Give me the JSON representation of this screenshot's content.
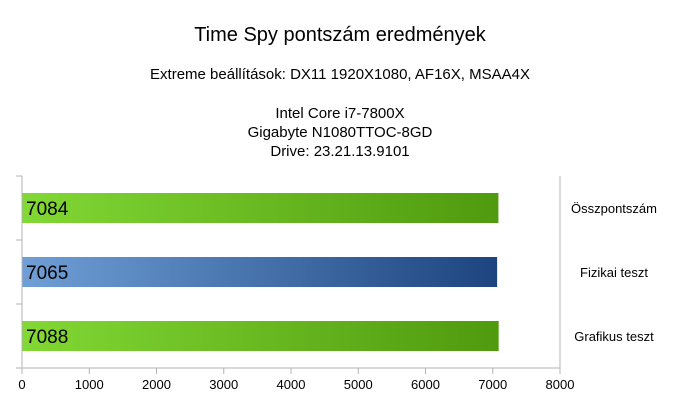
{
  "title": "Time Spy pontszám eredmények",
  "subtitle": "Extreme beállítások: DX11 1920X1080, AF16X, MSAA4X",
  "system": {
    "cpu": "Intel Core i7-7800X",
    "gpu": "Gigabyte N1080TTOC-8GD",
    "driver": "Drive: 23.21.13.9101"
  },
  "chart_data": {
    "type": "bar",
    "orientation": "horizontal",
    "categories": [
      "Összpontszám",
      "Fizikai teszt",
      "Grafikus teszt"
    ],
    "values": [
      7084,
      7065,
      7088
    ],
    "data_labels": [
      "7084",
      "7065",
      "7088"
    ],
    "bar_colors": [
      "#7ac943",
      "#4a78b4",
      "#7ac943"
    ],
    "xlim": [
      0,
      8000
    ],
    "xticks": [
      0,
      1000,
      2000,
      3000,
      4000,
      5000,
      6000,
      7000,
      8000
    ],
    "xtick_labels": [
      "0",
      "1000",
      "2000",
      "3000",
      "4000",
      "5000",
      "6000",
      "7000",
      "8000"
    ],
    "grid": false,
    "legend": "right",
    "legend_entries": [
      "Összpontszám",
      "Fizikai teszt",
      "Grafikus teszt"
    ]
  }
}
